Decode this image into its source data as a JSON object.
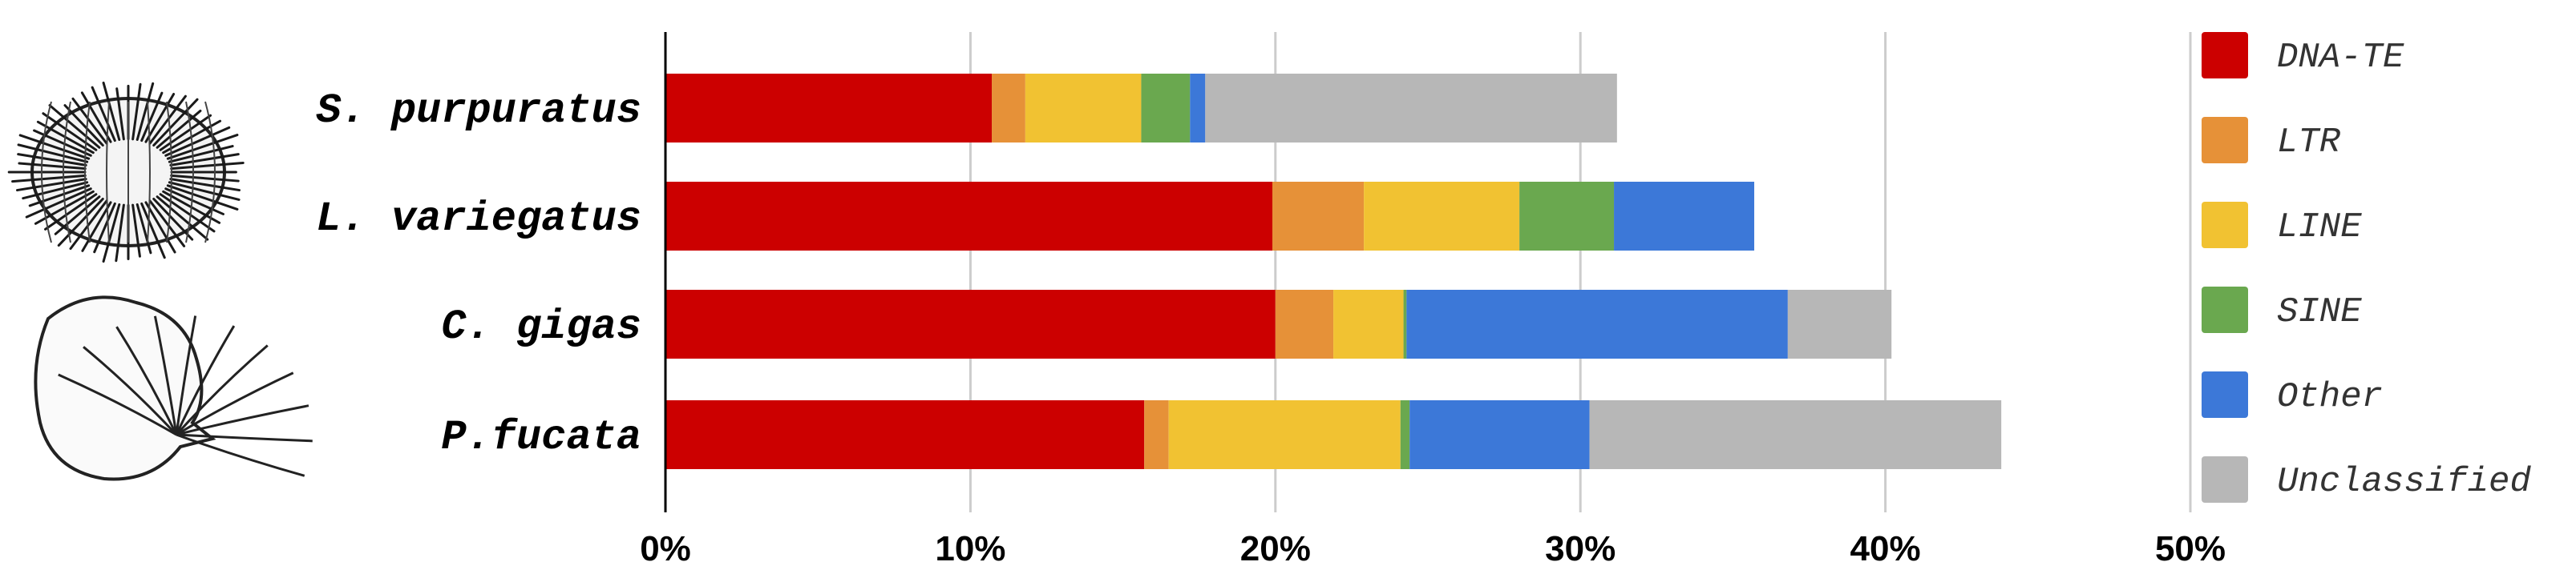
{
  "chart_data": {
    "type": "bar",
    "orientation": "horizontal",
    "stacked": true,
    "title": "",
    "xlabel": "",
    "ylabel": "",
    "xlim": [
      0,
      50
    ],
    "x_ticks": [
      "0%",
      "10%",
      "20%",
      "30%",
      "40%",
      "50%"
    ],
    "x_tick_values": [
      0,
      10,
      20,
      30,
      40,
      50
    ],
    "grid": true,
    "legend_position": "right",
    "categories": [
      "S. purpuratus",
      "L. variegatus",
      "C. gigas",
      "P.fucata"
    ],
    "series": [
      {
        "name": "DNA-TE",
        "color": "#cc0000",
        "values": [
          10.7,
          19.9,
          20.0,
          15.7
        ]
      },
      {
        "name": "LTR",
        "color": "#e69138",
        "values": [
          1.1,
          3.0,
          1.9,
          0.8
        ]
      },
      {
        "name": "LINE",
        "color": "#f1c232",
        "values": [
          3.8,
          5.1,
          2.3,
          7.6
        ]
      },
      {
        "name": "SINE",
        "color": "#6aa84f",
        "values": [
          1.6,
          3.1,
          0.1,
          0.3
        ]
      },
      {
        "name": "Other",
        "color": "#3c78d8",
        "values": [
          0.5,
          4.6,
          12.5,
          5.9
        ]
      },
      {
        "name": "Unclassified",
        "color": "#b7b7b7",
        "values": [
          13.5,
          0.0,
          3.4,
          13.5
        ]
      }
    ]
  },
  "icons": {
    "top": "sea-urchin-icon",
    "bottom": "scallop-shell-icon"
  }
}
